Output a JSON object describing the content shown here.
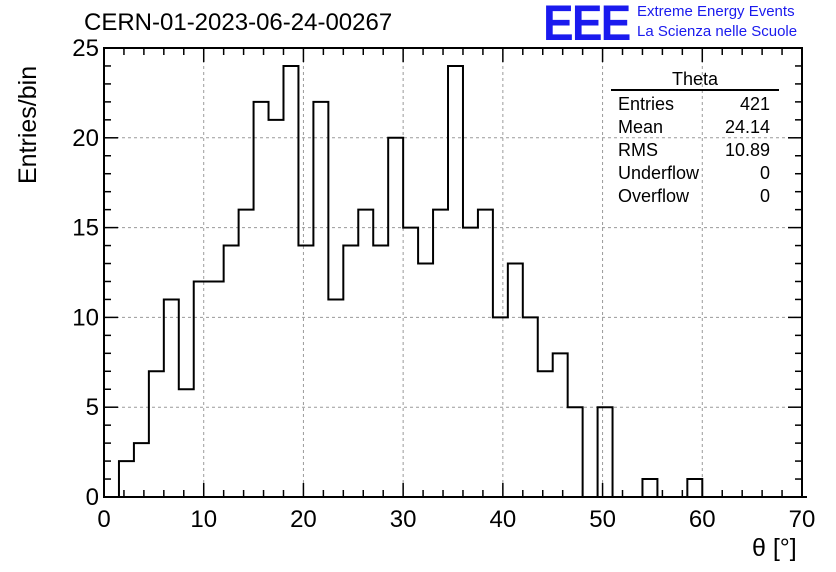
{
  "title": "CERN-01-2023-06-24-00267",
  "logo": {
    "mark": "EEE",
    "line1": "Extreme Energy Events",
    "line2": "La Scienza nelle Scuole",
    "color": "#1a1aee"
  },
  "stats": {
    "title": "Theta",
    "rows": [
      {
        "label": "Entries",
        "value": "421"
      },
      {
        "label": "Mean",
        "value": "24.14"
      },
      {
        "label": "RMS",
        "value": "10.89"
      },
      {
        "label": "Underflow",
        "value": "0"
      },
      {
        "label": "Overflow",
        "value": "0"
      }
    ]
  },
  "chart_data": {
    "type": "histogram",
    "xlabel": "θ [°]",
    "ylabel": "Entries/bin",
    "xlim": [
      0,
      70
    ],
    "ylim": [
      0,
      25
    ],
    "xticks": [
      "0",
      "10",
      "20",
      "30",
      "40",
      "50",
      "60",
      "70"
    ],
    "yticks": [
      "0",
      "5",
      "10",
      "15",
      "20",
      "25"
    ],
    "grid": true,
    "bin_width": 1.5,
    "bin_start": 0,
    "values": [
      0,
      2,
      3,
      7,
      11,
      6,
      12,
      12,
      14,
      16,
      22,
      21,
      24,
      14,
      22,
      11,
      14,
      16,
      14,
      20,
      15,
      13,
      16,
      24,
      15,
      16,
      10,
      13,
      10,
      7,
      8,
      5,
      0,
      5,
      0,
      0,
      1,
      0,
      0,
      1,
      0,
      0,
      0,
      0,
      0,
      0,
      0
    ],
    "line_color": "#000000"
  }
}
